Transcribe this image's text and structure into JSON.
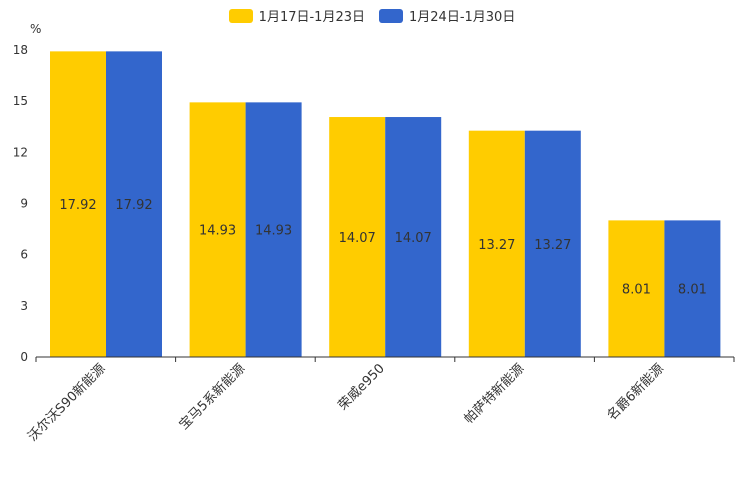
{
  "chart_data": {
    "type": "bar",
    "unit": "%",
    "categories": [
      "沃尔沃S90新能源",
      "宝马5系新能源",
      "荣威e950",
      "帕萨特新能源",
      "名爵6新能源"
    ],
    "series": [
      {
        "name": "1月17日-1月23日",
        "color": "#ffcc00",
        "values": [
          17.92,
          14.93,
          14.07,
          13.27,
          8.01
        ]
      },
      {
        "name": "1月24日-1月30日",
        "color": "#3366cc",
        "values": [
          17.92,
          14.93,
          14.07,
          13.27,
          8.01
        ]
      }
    ],
    "ylim": [
      0,
      18
    ],
    "yticks": [
      0,
      3,
      6,
      9,
      12,
      15,
      18
    ],
    "legend_position": "top-center"
  }
}
